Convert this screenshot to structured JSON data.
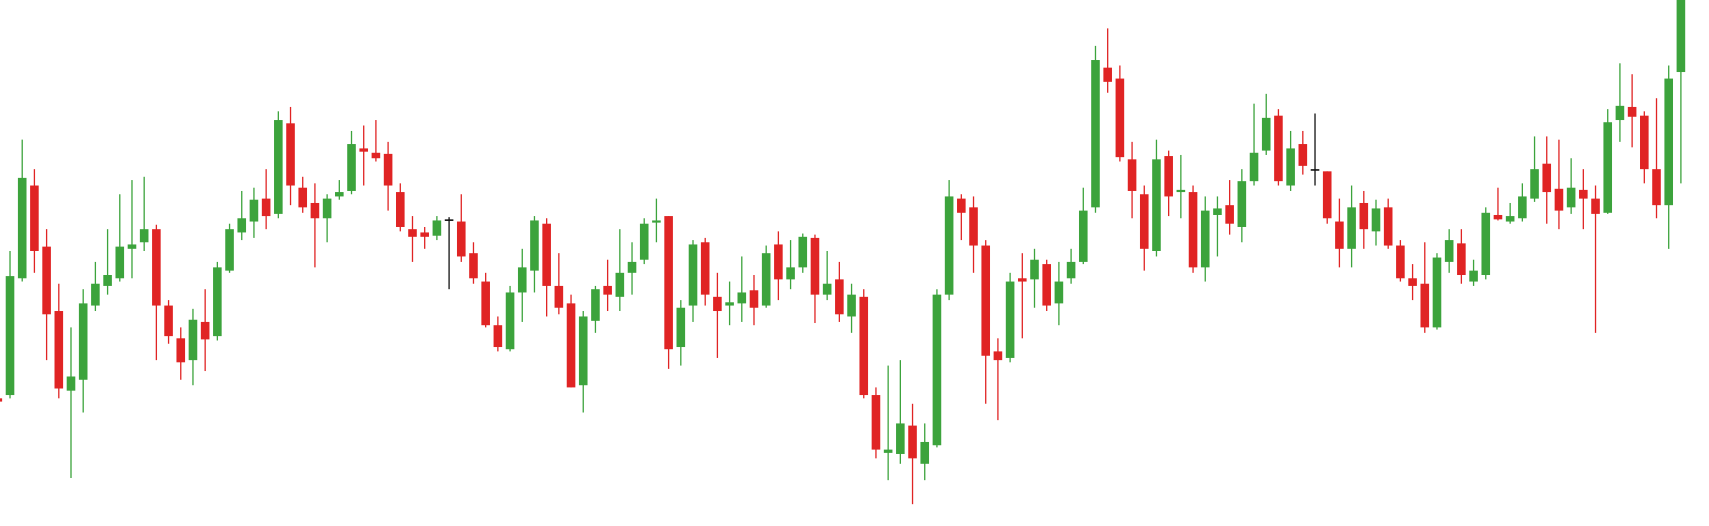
{
  "chart_data": {
    "type": "candlestick",
    "ylim": [
      -12,
      470
    ],
    "up_color": "#3ca33c",
    "down_color": "#e02424",
    "unchanged_color": "#111111",
    "open": [
      105,
      108,
      215,
      300,
      244,
      185,
      112,
      122,
      190,
      208,
      215,
      242,
      248,
      260,
      190,
      160,
      140,
      175,
      162,
      222,
      257,
      267,
      288,
      274,
      357,
      298,
      284,
      270,
      290,
      295,
      334,
      330,
      329,
      294,
      260,
      257,
      254,
      269,
      267,
      238,
      212,
      172,
      150,
      202,
      222,
      265,
      208,
      192,
      117,
      176,
      208,
      198,
      220,
      232,
      266,
      272,
      152,
      190,
      248,
      198,
      190,
      192,
      204,
      190,
      246,
      214,
      225,
      252,
      200,
      214,
      180,
      198,
      108,
      55,
      54,
      80,
      45,
      62,
      200,
      288,
      280,
      245,
      148,
      142,
      215,
      214,
      228,
      192,
      215,
      230,
      280,
      408,
      398,
      324,
      292,
      240,
      327,
      294,
      294,
      225,
      273,
      282,
      262,
      304,
      332,
      364,
      300,
      338,
      315,
      313,
      267,
      242,
      284,
      258,
      280,
      245,
      215,
      210,
      170,
      230,
      247,
      212,
      218,
      273,
      267,
      270,
      288,
      320,
      297,
      280,
      296,
      288,
      275,
      360,
      372,
      364,
      315,
      282,
      404
    ],
    "high": [
      110,
      240,
      342,
      315,
      260,
      210,
      170,
      205,
      230,
      260,
      292,
      305,
      308,
      264,
      195,
      170,
      187,
      205,
      230,
      265,
      295,
      298,
      315,
      368,
      372,
      308,
      302,
      292,
      305,
      350,
      355,
      360,
      340,
      302,
      272,
      262,
      272,
      271,
      292,
      248,
      220,
      180,
      208,
      242,
      272,
      270,
      238,
      200,
      185,
      208,
      232,
      260,
      248,
      270,
      288,
      272,
      195,
      250,
      252,
      220,
      212,
      235,
      218,
      245,
      258,
      250,
      256,
      255,
      240,
      230,
      210,
      205,
      115,
      135,
      140,
      100,
      82,
      205,
      305,
      292,
      290,
      250,
      160,
      220,
      238,
      242,
      232,
      230,
      242,
      298,
      428,
      444,
      410,
      340,
      300,
      342,
      332,
      328,
      300,
      290,
      290,
      305,
      315,
      375,
      384,
      370,
      350,
      350,
      366,
      313,
      288,
      300,
      295,
      287,
      288,
      250,
      228,
      248,
      238,
      260,
      260,
      232,
      280,
      298,
      284,
      302,
      345,
      345,
      342,
      325,
      315,
      300,
      370,
      412,
      402,
      368,
      380,
      410,
      470
    ],
    "low": [
      100,
      105,
      212,
      220,
      140,
      105,
      32,
      92,
      185,
      200,
      212,
      215,
      240,
      140,
      155,
      122,
      117,
      130,
      158,
      220,
      250,
      252,
      260,
      270,
      282,
      275,
      225,
      248,
      287,
      292,
      300,
      322,
      277,
      258,
      230,
      242,
      250,
      205,
      230,
      210,
      170,
      148,
      148,
      175,
      202,
      180,
      182,
      115,
      92,
      165,
      185,
      185,
      200,
      228,
      248,
      132,
      135,
      175,
      190,
      142,
      172,
      175,
      172,
      188,
      195,
      205,
      220,
      174,
      195,
      175,
      165,
      105,
      50,
      30,
      45,
      8,
      30,
      60,
      195,
      250,
      220,
      100,
      85,
      138,
      160,
      188,
      185,
      172,
      210,
      228,
      275,
      385,
      322,
      270,
      222,
      235,
      272,
      270,
      220,
      212,
      235,
      255,
      248,
      300,
      328,
      300,
      295,
      310,
      300,
      265,
      225,
      225,
      242,
      245,
      242,
      212,
      195,
      165,
      168,
      220,
      210,
      208,
      214,
      268,
      265,
      267,
      285,
      265,
      260,
      274,
      260,
      165,
      274,
      340,
      335,
      302,
      270,
      242,
      302
    ],
    "close": [
      102,
      217,
      307,
      240,
      182,
      114,
      125,
      192,
      210,
      218,
      244,
      246,
      260,
      190,
      162,
      138,
      177,
      159,
      225,
      260,
      270,
      287,
      272,
      360,
      300,
      280,
      270,
      288,
      294,
      338,
      331,
      325,
      300,
      262,
      253,
      253,
      268,
      269,
      235,
      215,
      172,
      152,
      202,
      225,
      268,
      208,
      188,
      115,
      180,
      205,
      200,
      220,
      230,
      265,
      268,
      150,
      188,
      246,
      200,
      185,
      193,
      202,
      188,
      238,
      214,
      225,
      253,
      200,
      210,
      182,
      200,
      108,
      58,
      58,
      82,
      50,
      65,
      200,
      290,
      275,
      245,
      144,
      140,
      212,
      212,
      232,
      190,
      212,
      230,
      277,
      415,
      395,
      326,
      295,
      242,
      324,
      290,
      296,
      225,
      277,
      279,
      265,
      304,
      330,
      362,
      304,
      334,
      318,
      315,
      270,
      242,
      280,
      260,
      279,
      245,
      215,
      208,
      170,
      234,
      250,
      218,
      222,
      275,
      269,
      272,
      290,
      315,
      294,
      277,
      298,
      288,
      274,
      358,
      373,
      363,
      315,
      282,
      398,
      470
    ]
  }
}
